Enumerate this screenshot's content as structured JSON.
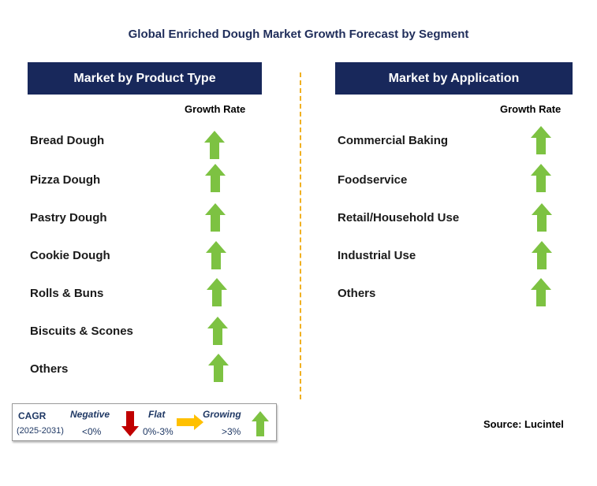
{
  "title": "Global Enriched Dough Market Growth Forecast by Segment",
  "left_panel": {
    "header": "Market by Product Type",
    "growth_label": "Growth Rate",
    "items": [
      {
        "label": "Bread Dough",
        "trend": "growing"
      },
      {
        "label": "Pizza Dough",
        "trend": "growing"
      },
      {
        "label": "Pastry Dough",
        "trend": "growing"
      },
      {
        "label": "Cookie Dough",
        "trend": "growing"
      },
      {
        "label": "Rolls & Buns",
        "trend": "growing"
      },
      {
        "label": "Biscuits & Scones",
        "trend": "growing"
      },
      {
        "label": "Others",
        "trend": "growing"
      }
    ]
  },
  "right_panel": {
    "header": "Market by Application",
    "growth_label": "Growth Rate",
    "items": [
      {
        "label": "Commercial Baking",
        "trend": "growing"
      },
      {
        "label": "Foodservice",
        "trend": "growing"
      },
      {
        "label": "Retail/Household Use",
        "trend": "growing"
      },
      {
        "label": "Industrial Use",
        "trend": "growing"
      },
      {
        "label": "Others",
        "trend": "growing"
      }
    ]
  },
  "legend": {
    "cagr_label": "CAGR",
    "period": "(2025-2031)",
    "negative_label": "Negative",
    "negative_value": "<0%",
    "flat_label": "Flat",
    "flat_value": "0%-3%",
    "growing_label": "Growing",
    "growing_value": ">3%"
  },
  "source": "Source: Lucintel",
  "colors": {
    "header_bg": "#18285b",
    "up_arrow": "#7dc242",
    "down_arrow": "#c00000",
    "flat_arrow": "#ffc000",
    "divider": "#f0b020"
  }
}
